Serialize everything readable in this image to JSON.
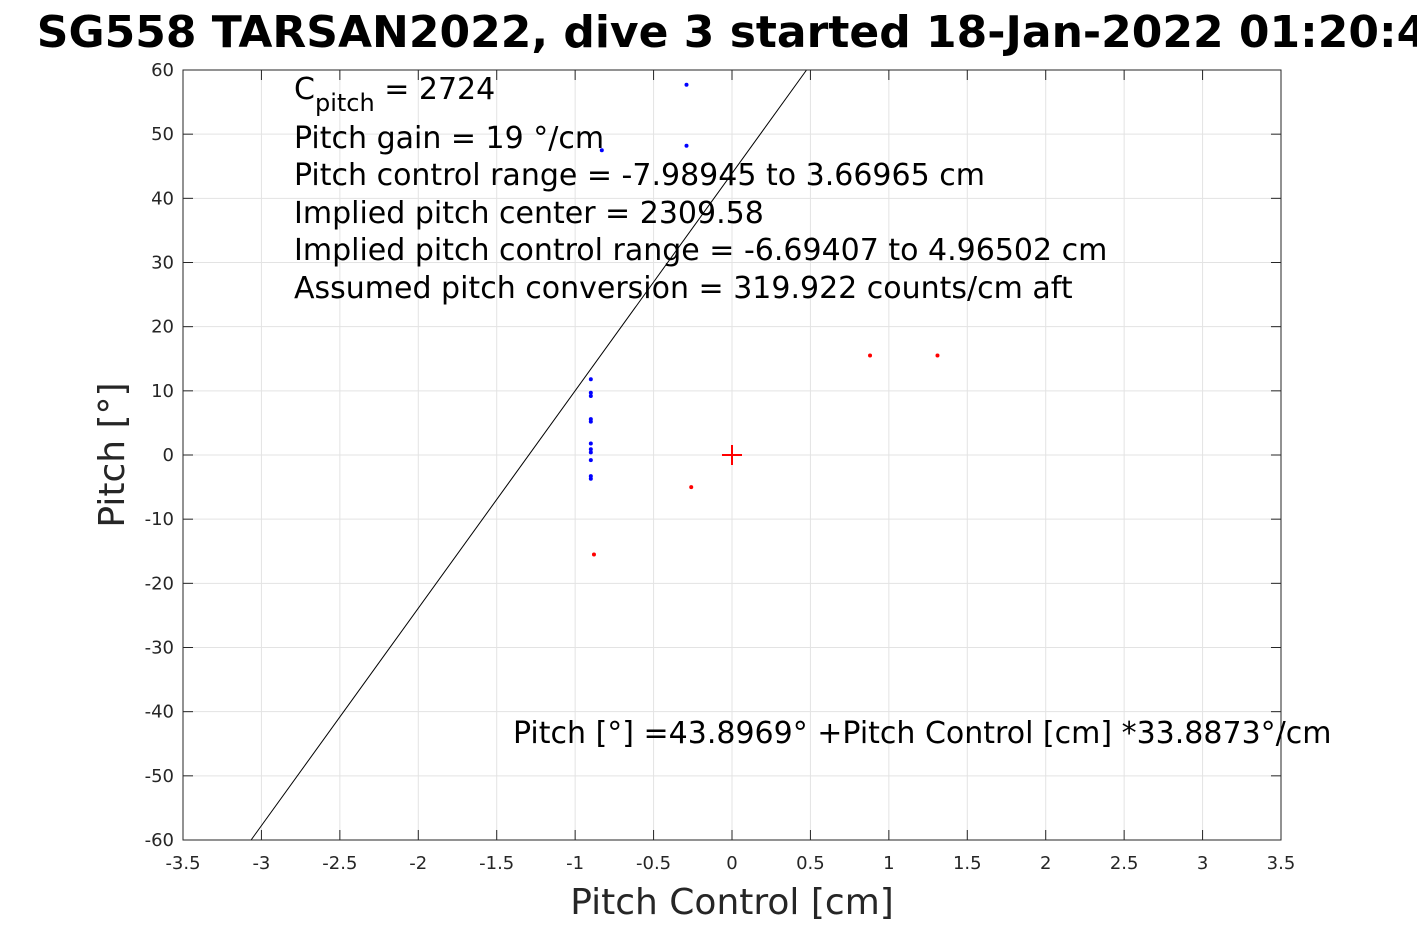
{
  "chart_data": {
    "type": "scatter",
    "title": "SG558 TARSAN2022, dive 3 started 18-Jan-2022 01:20:4",
    "xlabel": "Pitch Control [cm]",
    "ylabel": "Pitch [°]",
    "xlim": [
      -3.5,
      3.5
    ],
    "ylim": [
      -60,
      60
    ],
    "x_ticks": [
      -3.5,
      -3,
      -2.5,
      -2,
      -1.5,
      -1,
      -0.5,
      0,
      0.5,
      1,
      1.5,
      2,
      2.5,
      3,
      3.5
    ],
    "y_ticks": [
      -60,
      -50,
      -40,
      -30,
      -20,
      -10,
      0,
      10,
      20,
      30,
      40,
      50,
      60
    ],
    "grid": true,
    "series": [
      {
        "color": "#0000ff",
        "marker": "dot",
        "points": [
          [
            -0.29,
            57.7
          ],
          [
            -0.29,
            48.2
          ],
          [
            -0.83,
            47.5
          ],
          [
            -0.9,
            11.8
          ],
          [
            -0.9,
            9.7
          ],
          [
            -0.9,
            9.2
          ],
          [
            -0.9,
            5.6
          ],
          [
            -0.9,
            5.2
          ],
          [
            -0.9,
            1.8
          ],
          [
            -0.9,
            0.9
          ],
          [
            -0.9,
            0.4
          ],
          [
            -0.9,
            -0.8
          ],
          [
            -0.9,
            -3.3
          ],
          [
            -0.9,
            -3.7
          ]
        ]
      },
      {
        "color": "#ff0000",
        "marker": "dot",
        "points": [
          [
            0.88,
            15.5
          ],
          [
            1.31,
            15.5
          ],
          [
            -0.26,
            -5.0
          ],
          [
            -0.88,
            -15.5
          ]
        ]
      }
    ],
    "center_marker": {
      "x": 0,
      "y": 0,
      "color": "#ff0000",
      "shape": "plus"
    },
    "fit_line": {
      "intercept": 43.8969,
      "slope": 33.8873,
      "color": "#000000"
    },
    "annotations": {
      "c_pitch_main": "C",
      "c_pitch_sub": "pitch",
      "c_pitch_value": " = 2724",
      "lines": [
        "Pitch gain = 19 °/cm",
        "Pitch control range = -7.98945 to 3.66965 cm",
        "Implied pitch center = 2309.58",
        "Implied pitch control range = -6.69407 to 4.96502 cm",
        "Assumed pitch conversion = 319.922 counts/cm aft"
      ],
      "fit_equation": "Pitch [°] =43.8969° +Pitch Control [cm] *33.8873°/cm"
    }
  }
}
